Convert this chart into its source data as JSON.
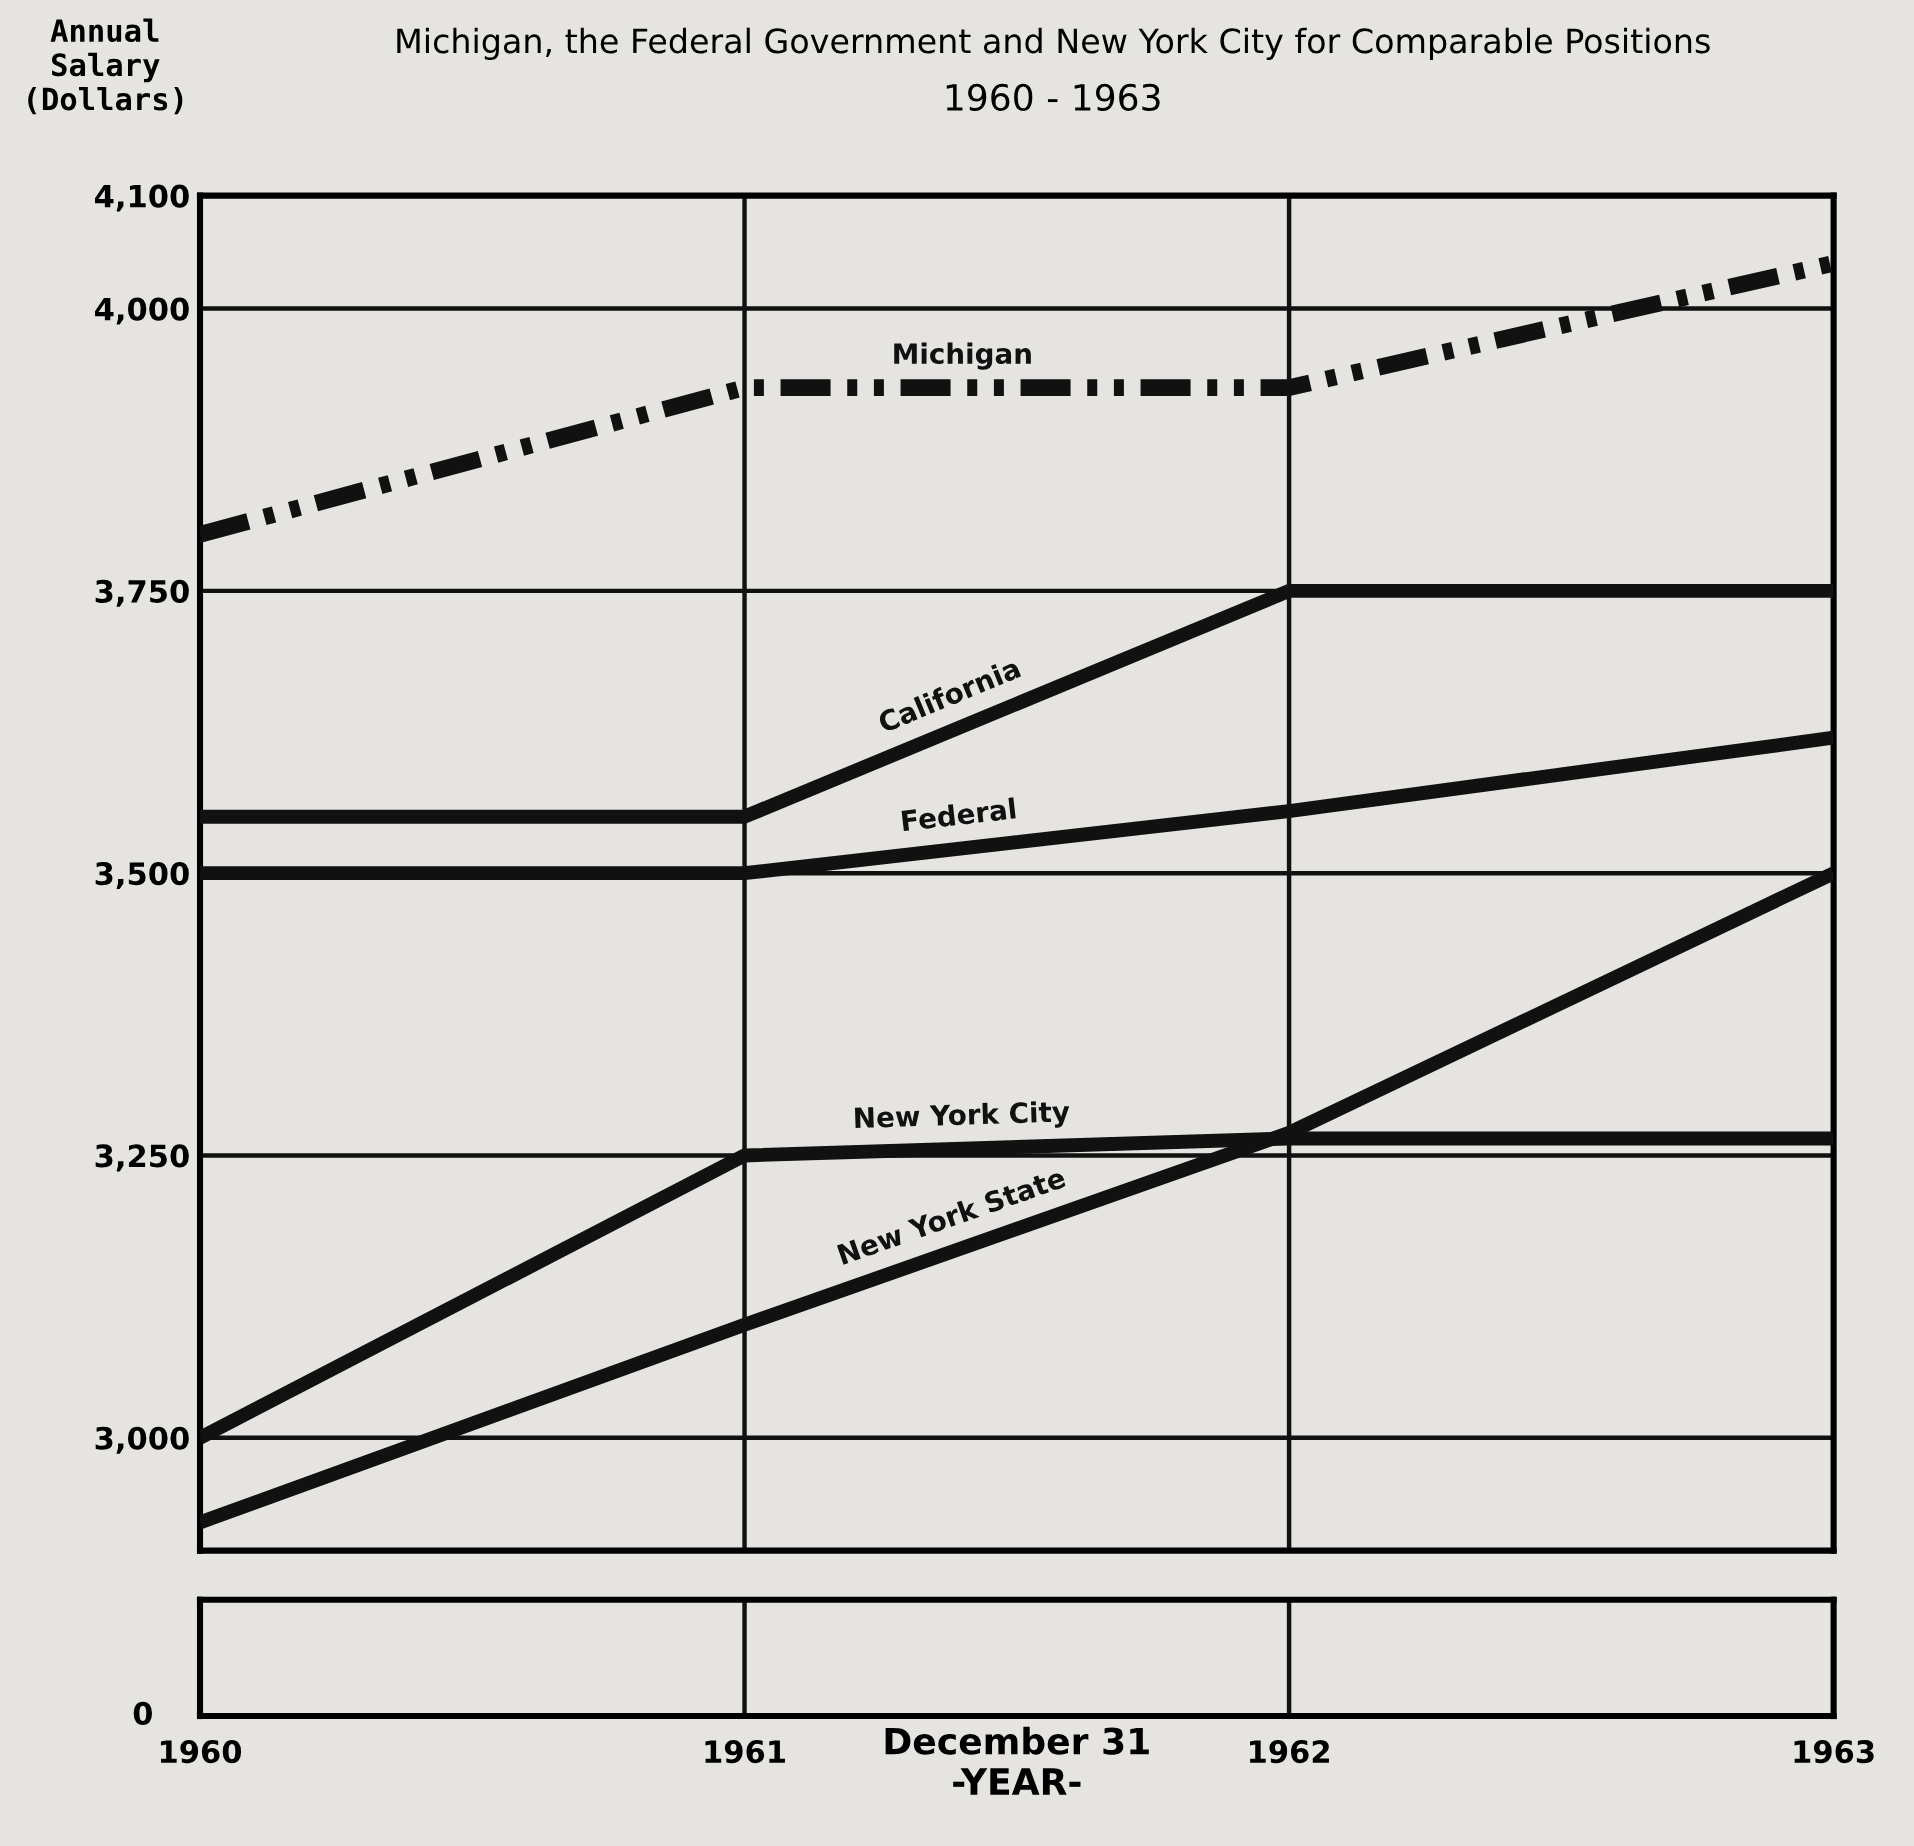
{
  "chart_data": [
    {
      "type": "line",
      "title": "Michigan, the Federal Government and New York City for Comparable Positions",
      "subtitle": "1960 - 1963",
      "ylabel": "Annual\nSalary\n(Dollars)",
      "x": [
        1960,
        1961,
        1962,
        1963
      ],
      "xlim": [
        1960,
        1963
      ],
      "xticks": [
        1960,
        1961,
        1962,
        1963
      ],
      "ylim": [
        2900,
        4100
      ],
      "yticks": [
        {
          "value": 3000,
          "label": "3,000"
        },
        {
          "value": 3250,
          "label": "3,250"
        },
        {
          "value": 3500,
          "label": "3,500"
        },
        {
          "value": 3750,
          "label": "3,750"
        },
        {
          "value": 4000,
          "label": "4,000"
        },
        {
          "value": 4100,
          "label": "4,100"
        }
      ],
      "grid": true,
      "legend": false,
      "marker": "none",
      "xlabel": "December 31\n-YEAR-",
      "annotations": [
        "0"
      ],
      "series": [
        {
          "name": "Michigan",
          "color": "#111111",
          "line_style": "dashdot",
          "values": [
            3800,
            3930,
            3930,
            4040
          ]
        },
        {
          "name": "California",
          "color": "#111111",
          "line_style": "solid",
          "values": [
            3550,
            3550,
            3750,
            3750
          ]
        },
        {
          "name": "Federal",
          "color": "#111111",
          "line_style": "solid",
          "values": [
            3500,
            3500,
            3555,
            3620
          ]
        },
        {
          "name": "New York City",
          "color": "#111111",
          "line_style": "solid",
          "values": [
            3000,
            3250,
            3265,
            3265
          ]
        },
        {
          "name": "New York State",
          "color": "#111111",
          "line_style": "solid",
          "values": [
            2925,
            3100,
            3270,
            3500
          ]
        }
      ]
    }
  ]
}
